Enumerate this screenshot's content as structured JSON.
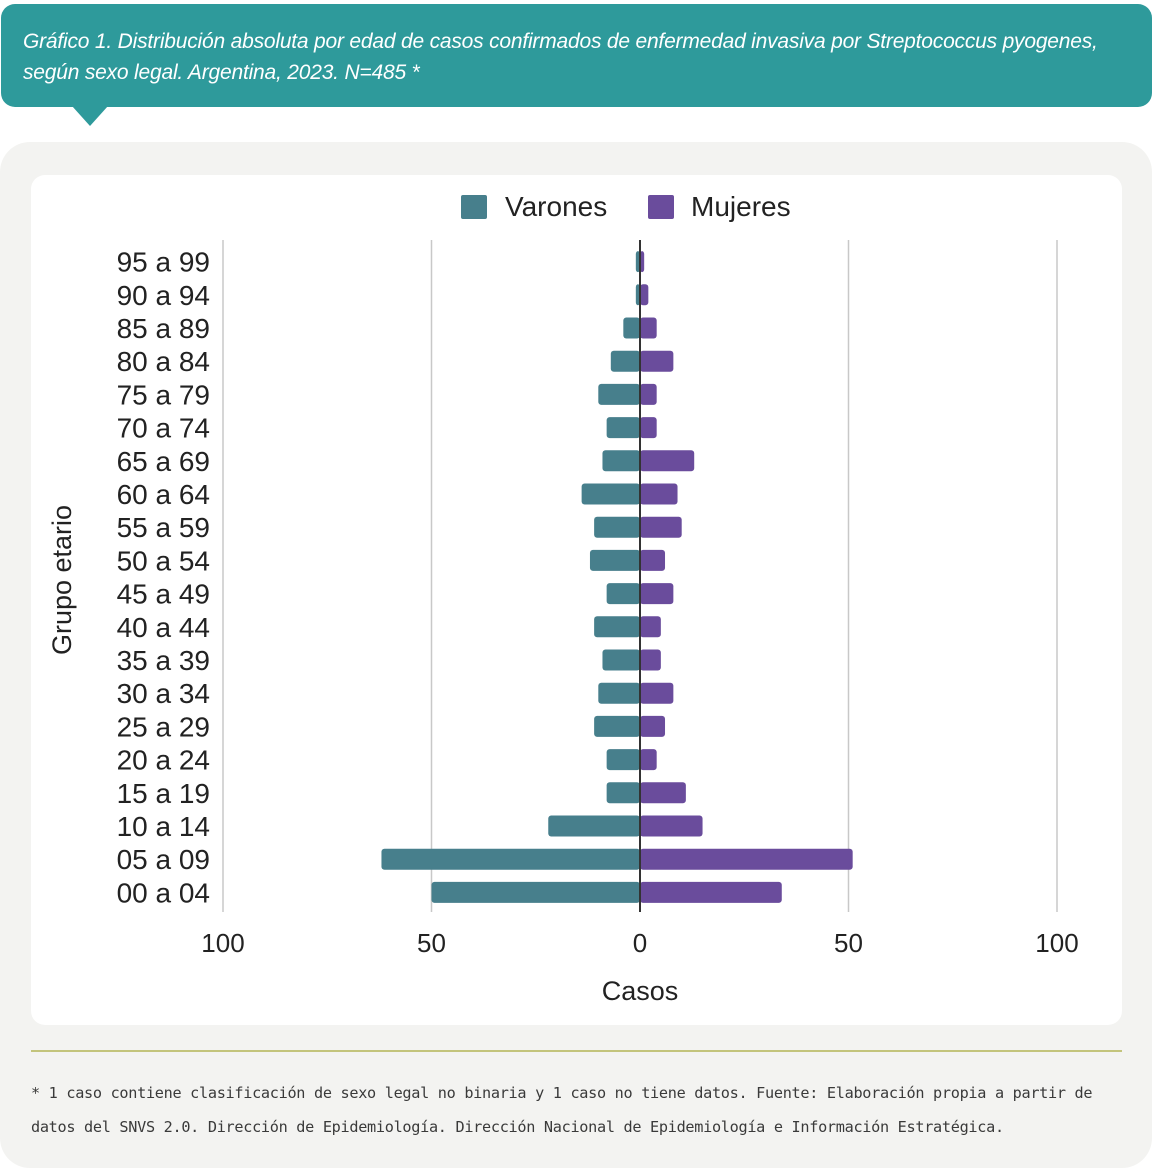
{
  "header": {
    "title": "Gráfico 1. Distribución absoluta por edad de casos confirmados de enfermedad invasiva por Streptococcus pyogenes, según sexo legal. Argentina, 2023. N=485 *"
  },
  "footer": {
    "note": "* 1 caso contiene clasificación de sexo legal no binaria y 1 caso no tiene datos. Fuente: Elaboración propia a partir de datos del SNVS 2.0. Dirección de Epidemiología. Dirección Nacional de Epidemiología e Información Estratégica."
  },
  "colors": {
    "varones": "#477f8c",
    "mujeres": "#6a4c9c",
    "banner": "#2e9a9b"
  },
  "chart_data": {
    "type": "bar",
    "orientation": "horizontal-population-pyramid",
    "title": "Gráfico 1. Distribución absoluta por edad de casos confirmados de enfermedad invasiva por Streptococcus pyogenes, según sexo legal. Argentina, 2023. N=485 *",
    "xlabel": "Casos",
    "ylabel": "Grupo etario",
    "xlim": [
      -100,
      100
    ],
    "xticks": [
      -100,
      -50,
      0,
      50,
      100
    ],
    "xtick_labels": [
      "100",
      "50",
      "0",
      "50",
      "100"
    ],
    "grid": true,
    "legend_position": "top-center",
    "categories": [
      "00 a 04",
      "05 a 09",
      "10 a 14",
      "15 a 19",
      "20 a 24",
      "25 a 29",
      "30 a 34",
      "35 a 39",
      "40 a 44",
      "45 a 49",
      "50 a 54",
      "55 a 59",
      "60 a 64",
      "65 a 69",
      "70 a 74",
      "75 a 79",
      "80 a 84",
      "85 a 89",
      "90 a 94",
      "95 a 99"
    ],
    "series": [
      {
        "name": "Varones",
        "side": "left",
        "values": [
          50,
          62,
          22,
          8,
          8,
          11,
          10,
          9,
          11,
          8,
          12,
          11,
          14,
          9,
          8,
          10,
          7,
          4,
          1,
          1
        ]
      },
      {
        "name": "Mujeres",
        "side": "right",
        "values": [
          34,
          51,
          15,
          11,
          4,
          6,
          8,
          5,
          5,
          8,
          6,
          10,
          9,
          13,
          4,
          4,
          8,
          4,
          2,
          1
        ]
      }
    ]
  }
}
